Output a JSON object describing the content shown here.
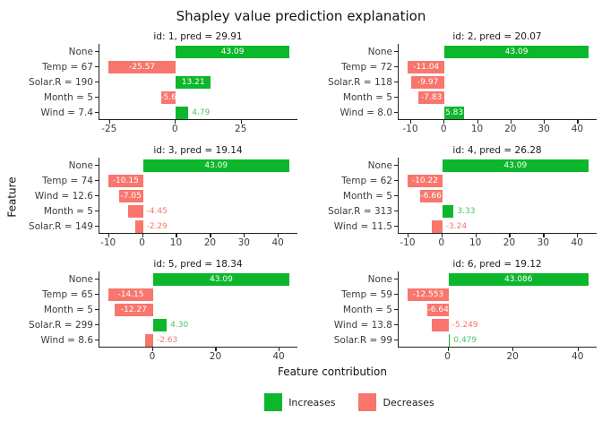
{
  "chart_data": {
    "type": "bar",
    "orientation": "horizontal",
    "facets": "2 columns x 3 rows",
    "title": "Shapley value prediction explanation",
    "xlabel": "Feature contribution",
    "ylabel": "Feature",
    "grid": false,
    "axis_expansion": 0.05,
    "colors": {
      "increase": "#0CB72B",
      "decrease": "#F8766D",
      "label_inside": "#FFFFFF",
      "label_increase_outside": "#44C767",
      "label_decrease_outside": "#F8766D",
      "axis_line": "#222222",
      "tick_text": "#3C3C3C"
    },
    "legend": {
      "position": "bottom",
      "entries": [
        {
          "label": "Increases",
          "color": "#0CB72B"
        },
        {
          "label": "Decreases",
          "color": "#F8766D"
        }
      ]
    },
    "panels": [
      {
        "id": 1,
        "pred": 29.91,
        "title": "id: 1, pred = 29.91",
        "categories": [
          "None",
          "Temp = 67",
          "Solar.R = 190",
          "Month = 5",
          "Wind = 7.4"
        ],
        "values": [
          43.09,
          -25.57,
          13.21,
          -5.6,
          4.79
        ],
        "labels": [
          "43.09",
          "-25.57",
          "13.21",
          "-5.6",
          "4.79"
        ],
        "label_pos": [
          "in",
          "in",
          "in",
          "in",
          "out"
        ],
        "ticks": [
          -25,
          0,
          25
        ]
      },
      {
        "id": 2,
        "pred": 20.07,
        "title": "id: 2, pred = 20.07",
        "categories": [
          "None",
          "Temp = 72",
          "Solar.R = 118",
          "Month = 5",
          "Wind = 8.0"
        ],
        "values": [
          43.09,
          -11.04,
          -9.97,
          -7.83,
          5.83
        ],
        "labels": [
          "43.09",
          "-11.04",
          "-9.97",
          "-7.83",
          "5.83"
        ],
        "label_pos": [
          "in",
          "in",
          "in",
          "in",
          "in"
        ],
        "ticks": [
          -10,
          0,
          10,
          20,
          30,
          40
        ]
      },
      {
        "id": 3,
        "pred": 19.14,
        "title": "id: 3, pred = 19.14",
        "categories": [
          "None",
          "Temp = 74",
          "Wind = 12.6",
          "Month = 5",
          "Solar.R = 149"
        ],
        "values": [
          43.09,
          -10.15,
          -7.05,
          -4.45,
          -2.29
        ],
        "labels": [
          "43.09",
          "-10.15",
          "-7.05",
          "-4.45",
          "-2.29"
        ],
        "label_pos": [
          "in",
          "in",
          "in",
          "out",
          "out"
        ],
        "ticks": [
          -10,
          0,
          10,
          20,
          30,
          40
        ]
      },
      {
        "id": 4,
        "pred": 26.28,
        "title": "id: 4, pred = 26.28",
        "categories": [
          "None",
          "Temp = 62",
          "Month = 5",
          "Solar.R = 313",
          "Wind = 11.5"
        ],
        "values": [
          43.09,
          -10.22,
          -6.66,
          3.33,
          -3.24
        ],
        "labels": [
          "43.09",
          "-10.22",
          "-6.66",
          "3.33",
          "-3.24"
        ],
        "label_pos": [
          "in",
          "in",
          "in",
          "out",
          "out"
        ],
        "ticks": [
          -10,
          0,
          10,
          20,
          30,
          40
        ]
      },
      {
        "id": 5,
        "pred": 18.34,
        "title": "id: 5, pred = 18.34",
        "categories": [
          "None",
          "Temp = 65",
          "Month = 5",
          "Solar.R = 299",
          "Wind = 8.6"
        ],
        "values": [
          43.09,
          -14.15,
          -12.27,
          4.3,
          -2.63
        ],
        "labels": [
          "43.09",
          "-14.15",
          "-12.27",
          "4.30",
          "-2.63"
        ],
        "label_pos": [
          "in",
          "in",
          "in",
          "out",
          "out"
        ],
        "ticks": [
          0,
          20,
          40
        ]
      },
      {
        "id": 6,
        "pred": 19.12,
        "title": "id: 6, pred = 19.12",
        "categories": [
          "None",
          "Temp = 59",
          "Month = 5",
          "Wind = 13.8",
          "Solar.R = 99"
        ],
        "values": [
          43.086,
          -12.553,
          -6.646,
          -5.249,
          0.479
        ],
        "labels": [
          "43.086",
          "-12.553",
          "-6.646",
          "-5.249",
          "0.479"
        ],
        "label_pos": [
          "in",
          "in",
          "in-clip",
          "out",
          "out"
        ],
        "ticks": [
          0,
          20,
          40
        ]
      }
    ]
  }
}
